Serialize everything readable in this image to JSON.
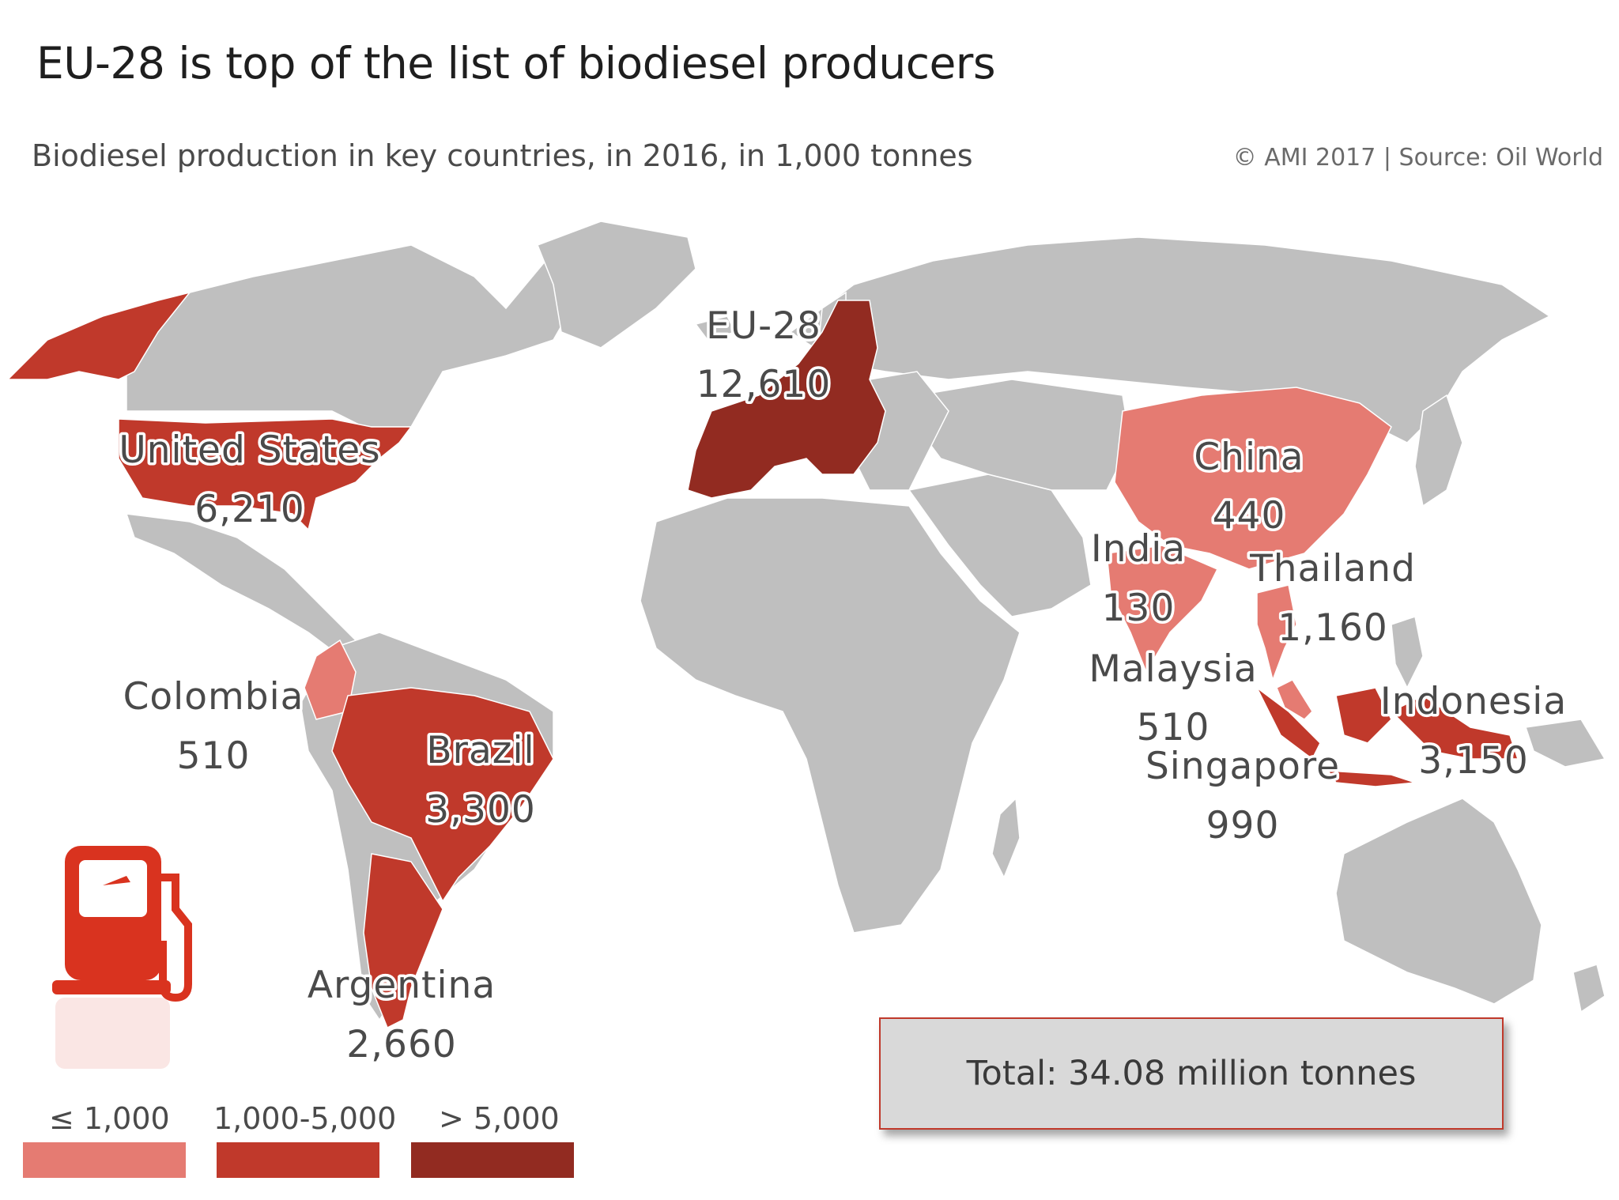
{
  "title": "EU-28 is top of the list of biodiesel producers",
  "subtitle": "Biodiesel production in key countries, in 2016, in 1,000 tonnes",
  "source": "© AMI 2017 | Source: Oil World",
  "total": "Total: 34.08 million tonnes",
  "colors": {
    "land": "#bfbfbf",
    "low": "#e57b72",
    "mid": "#c0392b",
    "high": "#922b21",
    "text": "#4a4a4a",
    "icon": "#d9331f"
  },
  "legend": [
    {
      "label": "≤ 1,000",
      "color": "#e57b72"
    },
    {
      "label": "1,000-5,000",
      "color": "#c0392b"
    },
    {
      "label": "> 5,000",
      "color": "#922b21"
    }
  ],
  "icon": "fuel-pump-icon",
  "countries": [
    {
      "name": "EU-28",
      "value": "12,610"
    },
    {
      "name": "United States",
      "value": "6,210"
    },
    {
      "name": "China",
      "value": "440"
    },
    {
      "name": "India",
      "value": "130"
    },
    {
      "name": "Thailand",
      "value": "1,160"
    },
    {
      "name": "Malaysia",
      "value": "510"
    },
    {
      "name": "Indonesia",
      "value": "3,150"
    },
    {
      "name": "Singapore",
      "value": "990"
    },
    {
      "name": "Colombia",
      "value": "510"
    },
    {
      "name": "Brazil",
      "value": "3,300"
    },
    {
      "name": "Argentina",
      "value": "2,660"
    }
  ]
}
